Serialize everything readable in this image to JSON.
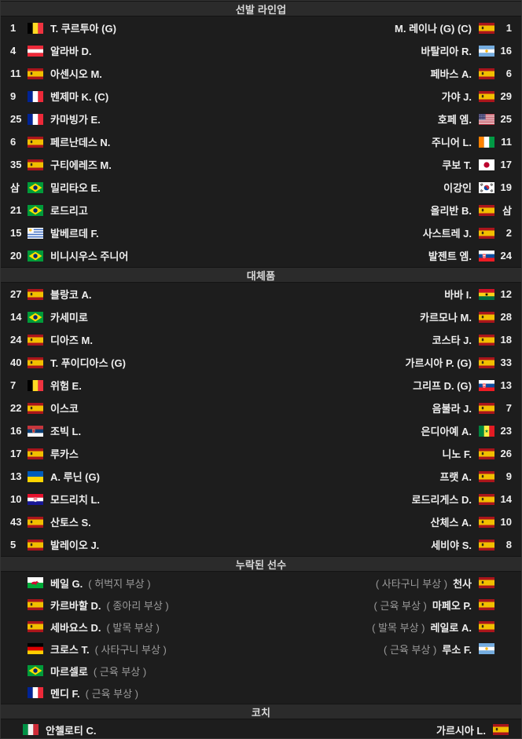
{
  "colors": {
    "row_background": "#1d1d1d",
    "header_background": "#2b2b2b",
    "text": "#eeeeee",
    "muted_text": "#9b9b9b"
  },
  "sections": [
    {
      "id": "lineup",
      "title": "선발 라인업",
      "left": [
        {
          "num": "1",
          "flag": "belgium",
          "name": "T. 쿠르투아 (G)"
        },
        {
          "num": "4",
          "flag": "austria",
          "name": "알라바 D."
        },
        {
          "num": "11",
          "flag": "spain",
          "name": "아센시오 M."
        },
        {
          "num": "9",
          "flag": "france",
          "name": "벤제마 K. (C)"
        },
        {
          "num": "25",
          "flag": "france",
          "name": "카마빙가 E."
        },
        {
          "num": "6",
          "flag": "spain",
          "name": "페르난데스 N."
        },
        {
          "num": "35",
          "flag": "spain",
          "name": "구티에레즈 M."
        },
        {
          "num": "삼",
          "flag": "brazil",
          "name": "밀리타오 E."
        },
        {
          "num": "21",
          "flag": "brazil",
          "name": "로드리고"
        },
        {
          "num": "15",
          "flag": "uruguay",
          "name": "발베르데 F."
        },
        {
          "num": "20",
          "flag": "brazil",
          "name": "비니시우스 주니어"
        }
      ],
      "right": [
        {
          "name": "M. 레이나 (G) (C)",
          "flag": "spain",
          "num": "1"
        },
        {
          "name": "바탈리아 R.",
          "flag": "argentina",
          "num": "16"
        },
        {
          "name": "페바스 A.",
          "flag": "spain",
          "num": "6"
        },
        {
          "name": "가야 J.",
          "flag": "spain",
          "num": "29"
        },
        {
          "name": "호페 엠.",
          "flag": "usa",
          "num": "25"
        },
        {
          "name": "주니어 L.",
          "flag": "ivory-coast",
          "num": "11"
        },
        {
          "name": "쿠보 T.",
          "flag": "japan",
          "num": "17"
        },
        {
          "name": "이강인",
          "flag": "south-korea",
          "num": "19"
        },
        {
          "name": "올리반 B.",
          "flag": "spain",
          "num": "삼"
        },
        {
          "name": "사스트레 J.",
          "flag": "spain",
          "num": "2"
        },
        {
          "name": "발젠트 엠.",
          "flag": "slovakia",
          "num": "24"
        }
      ]
    },
    {
      "id": "subs",
      "title": "대체품",
      "left": [
        {
          "num": "27",
          "flag": "spain",
          "name": "블랑코 A."
        },
        {
          "num": "14",
          "flag": "brazil",
          "name": "카세미로"
        },
        {
          "num": "24",
          "flag": "spain",
          "name": "디아즈 M."
        },
        {
          "num": "40",
          "flag": "spain",
          "name": "T. 푸이디아스 (G)"
        },
        {
          "num": "7",
          "flag": "belgium",
          "name": "위험 E."
        },
        {
          "num": "22",
          "flag": "spain",
          "name": "이스코"
        },
        {
          "num": "16",
          "flag": "serbia",
          "name": "조빅 L."
        },
        {
          "num": "17",
          "flag": "spain",
          "name": "루카스"
        },
        {
          "num": "13",
          "flag": "ukraine",
          "name": "A. 루닌 (G)"
        },
        {
          "num": "10",
          "flag": "croatia",
          "name": "모드리치 L."
        },
        {
          "num": "43",
          "flag": "spain",
          "name": "산토스 S."
        },
        {
          "num": "5",
          "flag": "spain",
          "name": "발레이오 J."
        }
      ],
      "right": [
        {
          "name": "바바 I.",
          "flag": "ghana",
          "num": "12"
        },
        {
          "name": "카르모나 M.",
          "flag": "spain",
          "num": "28"
        },
        {
          "name": "코스타 J.",
          "flag": "spain",
          "num": "18"
        },
        {
          "name": "가르시아 P. (G)",
          "flag": "spain",
          "num": "33"
        },
        {
          "name": "그리프 D. (G)",
          "flag": "slovakia",
          "num": "13"
        },
        {
          "name": "음불라 J.",
          "flag": "spain",
          "num": "7"
        },
        {
          "name": "은디아예 A.",
          "flag": "senegal",
          "num": "23"
        },
        {
          "name": "니노 F.",
          "flag": "spain",
          "num": "26"
        },
        {
          "name": "프랫 A.",
          "flag": "spain",
          "num": "9"
        },
        {
          "name": "로드리게스 D.",
          "flag": "spain",
          "num": "14"
        },
        {
          "name": "산체스 A.",
          "flag": "spain",
          "num": "10"
        },
        {
          "name": "세비야 S.",
          "flag": "spain",
          "num": "8"
        }
      ]
    },
    {
      "id": "missing",
      "title": "누락된 선수",
      "left": [
        {
          "num": "",
          "flag": "wales",
          "name": "베일 G.",
          "note": "( 허벅지 부상 )"
        },
        {
          "num": "",
          "flag": "spain",
          "name": "카르바할 D.",
          "note": "( 종아리 부상 )"
        },
        {
          "num": "",
          "flag": "spain",
          "name": "세바요스 D.",
          "note": "( 발목 부상 )"
        },
        {
          "num": "",
          "flag": "germany",
          "name": "크로스 T.",
          "note": "( 사타구니 부상 )"
        },
        {
          "num": "",
          "flag": "brazil",
          "name": "마르셀로",
          "note": "( 근육 부상 )"
        },
        {
          "num": "",
          "flag": "france",
          "name": "멘디 F.",
          "note": "( 근육 부상 )"
        }
      ],
      "right": [
        {
          "note": "( 사타구니 부상 )",
          "name": "천사",
          "flag": "spain",
          "num": ""
        },
        {
          "note": "( 근육 부상 )",
          "name": "마페오 P.",
          "flag": "spain",
          "num": ""
        },
        {
          "note": "( 발목 부상 )",
          "name": "레일로 A.",
          "flag": "spain",
          "num": ""
        },
        {
          "note": "( 근육 부상 )",
          "name": "루소 F.",
          "flag": "argentina",
          "num": ""
        }
      ]
    },
    {
      "id": "coach",
      "title": "코치",
      "left": [
        {
          "flag": "italy",
          "name": "안첼로티 C."
        }
      ],
      "right": [
        {
          "name": "가르시아 L.",
          "flag": "spain"
        }
      ]
    }
  ]
}
